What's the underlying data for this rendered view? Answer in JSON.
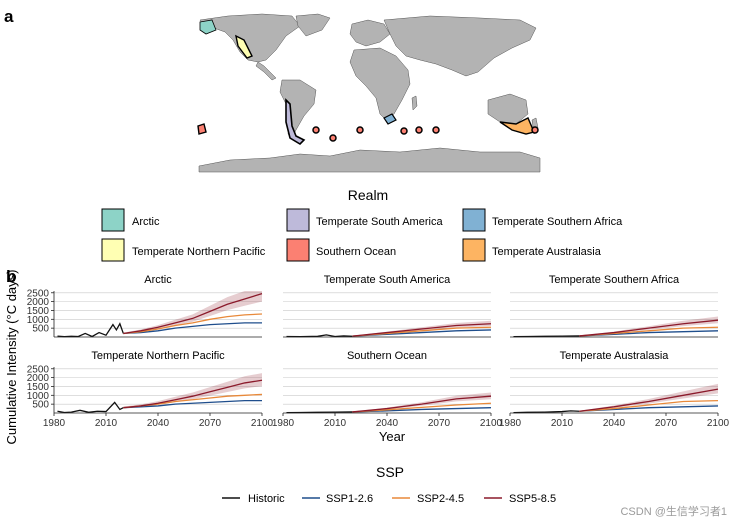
{
  "panel_labels": {
    "a": "a",
    "b": "b"
  },
  "realm_legend": {
    "title": "Realm",
    "items": [
      {
        "label": "Arctic",
        "color": "#8DD3C7"
      },
      {
        "label": "Temperate South America",
        "color": "#BEBADA"
      },
      {
        "label": "Temperate Southern Africa",
        "color": "#80B1D3"
      },
      {
        "label": "Temperate Northern Pacific",
        "color": "#FFFFB3"
      },
      {
        "label": "Southern Ocean",
        "color": "#FB8072"
      },
      {
        "label": "Temperate Australasia",
        "color": "#FDB462"
      }
    ]
  },
  "map": {
    "land_color": "#b3b3b3",
    "border_color": "#555555"
  },
  "ssp_legend": {
    "title": "SSP",
    "items": [
      {
        "label": "Historic",
        "color": "#111111"
      },
      {
        "label": "SSP1-2.6",
        "color": "#1f4e8c"
      },
      {
        "label": "SSP2-4.5",
        "color": "#e8893a"
      },
      {
        "label": "SSP5-8.5",
        "color": "#8b1a2b"
      }
    ]
  },
  "watermark": "CSDN @生信学习者1",
  "chart_data": {
    "type": "line",
    "xlabel": "Year",
    "ylabel": "Cumulative Intensity (°C days)",
    "xlim": [
      1980,
      2100
    ],
    "ylim": [
      0,
      2600
    ],
    "xticks": [
      1980,
      2010,
      2040,
      2070,
      2100
    ],
    "yticks": [
      500,
      1000,
      1500,
      2000,
      2500
    ],
    "grid": true,
    "legend_position": "bottom",
    "facets": [
      {
        "title": "Arctic",
        "series": [
          {
            "name": "Historic",
            "x": [
              1982,
              1986,
              1990,
              1994,
              1998,
              2002,
              2006,
              2010,
              2014,
              2016,
              2018,
              2020
            ],
            "y": [
              50,
              20,
              40,
              30,
              200,
              30,
              250,
              100,
              700,
              400,
              750,
              200
            ]
          },
          {
            "name": "SSP1-2.6",
            "x": [
              2020,
              2030,
              2040,
              2050,
              2060,
              2070,
              2080,
              2090,
              2100
            ],
            "y": [
              200,
              250,
              350,
              500,
              600,
              700,
              750,
              800,
              800
            ]
          },
          {
            "name": "SSP2-4.5",
            "x": [
              2020,
              2030,
              2040,
              2050,
              2060,
              2070,
              2080,
              2090,
              2100
            ],
            "y": [
              200,
              300,
              450,
              650,
              800,
              1000,
              1150,
              1250,
              1300
            ]
          },
          {
            "name": "SSP5-8.5",
            "x": [
              2020,
              2030,
              2040,
              2050,
              2060,
              2070,
              2080,
              2090,
              2100
            ],
            "y": [
              200,
              350,
              550,
              800,
              1050,
              1450,
              1850,
              2150,
              2450
            ]
          }
        ]
      },
      {
        "title": "Temperate South America",
        "series": [
          {
            "name": "Historic",
            "x": [
              1982,
              1990,
              2000,
              2005,
              2010,
              2015,
              2020
            ],
            "y": [
              30,
              20,
              40,
              120,
              30,
              60,
              40
            ]
          },
          {
            "name": "SSP1-2.6",
            "x": [
              2020,
              2040,
              2060,
              2080,
              2100
            ],
            "y": [
              50,
              150,
              250,
              350,
              400
            ]
          },
          {
            "name": "SSP2-4.5",
            "x": [
              2020,
              2040,
              2060,
              2080,
              2100
            ],
            "y": [
              50,
              200,
              350,
              500,
              550
            ]
          },
          {
            "name": "SSP5-8.5",
            "x": [
              2020,
              2040,
              2060,
              2080,
              2100
            ],
            "y": [
              50,
              250,
              450,
              650,
              750
            ]
          }
        ]
      },
      {
        "title": "Temperate Southern Africa",
        "series": [
          {
            "name": "Historic",
            "x": [
              1982,
              1990,
              2000,
              2010,
              2020
            ],
            "y": [
              20,
              30,
              40,
              50,
              60
            ]
          },
          {
            "name": "SSP1-2.6",
            "x": [
              2020,
              2040,
              2060,
              2080,
              2100
            ],
            "y": [
              60,
              150,
              250,
              300,
              350
            ]
          },
          {
            "name": "SSP2-4.5",
            "x": [
              2020,
              2040,
              2060,
              2080,
              2100
            ],
            "y": [
              60,
              200,
              350,
              500,
              550
            ]
          },
          {
            "name": "SSP5-8.5",
            "x": [
              2020,
              2040,
              2060,
              2080,
              2100
            ],
            "y": [
              60,
              250,
              500,
              750,
              950
            ]
          }
        ]
      },
      {
        "title": "Temperate Northern Pacific",
        "series": [
          {
            "name": "Historic",
            "x": [
              1982,
              1986,
              1990,
              1995,
              2000,
              2005,
              2010,
              2015,
              2018,
              2020
            ],
            "y": [
              100,
              30,
              50,
              150,
              40,
              100,
              80,
              600,
              200,
              300
            ]
          },
          {
            "name": "SSP1-2.6",
            "x": [
              2020,
              2030,
              2040,
              2050,
              2060,
              2070,
              2080,
              2090,
              2100
            ],
            "y": [
              300,
              350,
              400,
              500,
              550,
              600,
              650,
              700,
              700
            ]
          },
          {
            "name": "SSP2-4.5",
            "x": [
              2020,
              2030,
              2040,
              2050,
              2060,
              2070,
              2080,
              2090,
              2100
            ],
            "y": [
              300,
              400,
              500,
              650,
              750,
              850,
              950,
              1000,
              1050
            ]
          },
          {
            "name": "SSP5-8.5",
            "x": [
              2020,
              2030,
              2040,
              2050,
              2060,
              2070,
              2080,
              2090,
              2100
            ],
            "y": [
              300,
              400,
              550,
              750,
              950,
              1200,
              1450,
              1700,
              1850
            ]
          }
        ]
      },
      {
        "title": "Southern Ocean",
        "series": [
          {
            "name": "Historic",
            "x": [
              1982,
              1990,
              2000,
              2010,
              2020
            ],
            "y": [
              20,
              30,
              40,
              50,
              60
            ]
          },
          {
            "name": "SSP1-2.6",
            "x": [
              2020,
              2040,
              2060,
              2080,
              2100
            ],
            "y": [
              60,
              120,
              200,
              250,
              300
            ]
          },
          {
            "name": "SSP2-4.5",
            "x": [
              2020,
              2040,
              2060,
              2080,
              2100
            ],
            "y": [
              60,
              180,
              320,
              450,
              550
            ]
          },
          {
            "name": "SSP5-8.5",
            "x": [
              2020,
              2040,
              2060,
              2080,
              2100
            ],
            "y": [
              60,
              250,
              500,
              800,
              950
            ]
          }
        ]
      },
      {
        "title": "Temperate Australasia",
        "series": [
          {
            "name": "Historic",
            "x": [
              1982,
              1990,
              2000,
              2010,
              2015,
              2020
            ],
            "y": [
              20,
              40,
              50,
              80,
              120,
              100
            ]
          },
          {
            "name": "SSP1-2.6",
            "x": [
              2020,
              2040,
              2060,
              2080,
              2100
            ],
            "y": [
              100,
              200,
              300,
              350,
              400
            ]
          },
          {
            "name": "SSP2-4.5",
            "x": [
              2020,
              2040,
              2060,
              2080,
              2100
            ],
            "y": [
              100,
              250,
              450,
              650,
              700
            ]
          },
          {
            "name": "SSP5-8.5",
            "x": [
              2020,
              2040,
              2060,
              2080,
              2100
            ],
            "y": [
              100,
              350,
              650,
              1000,
              1350
            ]
          }
        ]
      }
    ]
  }
}
